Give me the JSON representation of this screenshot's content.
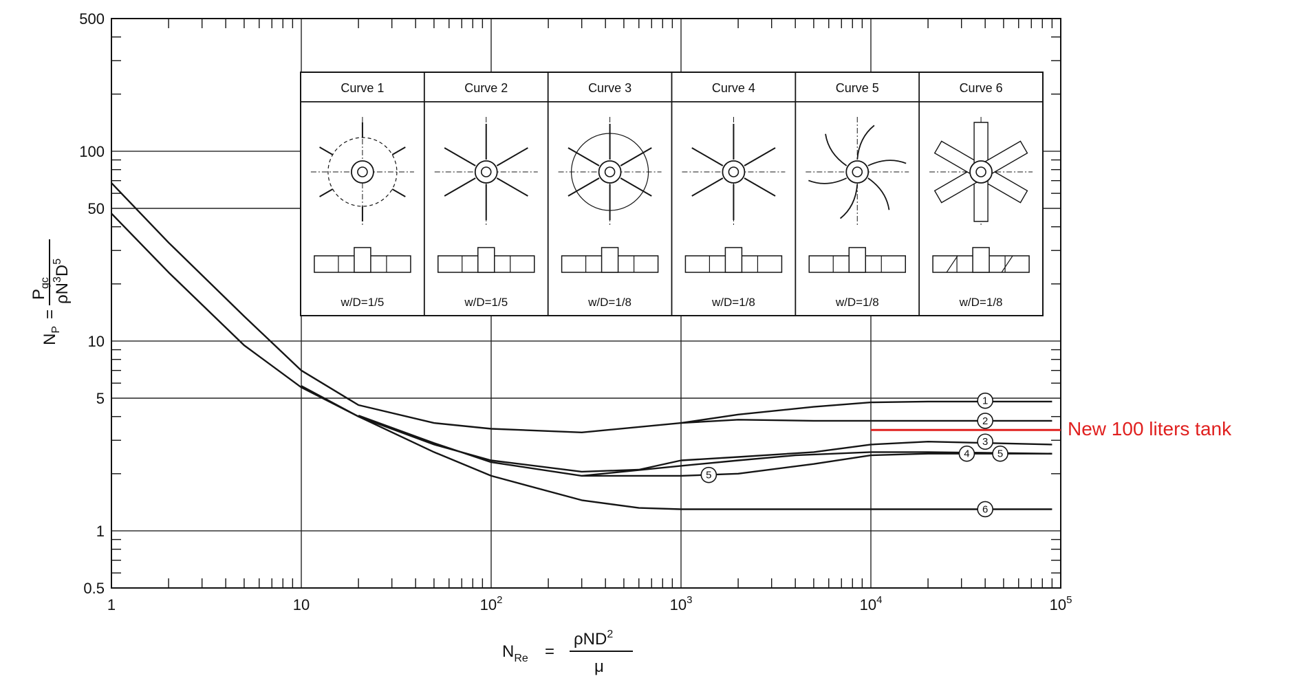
{
  "chart_data": {
    "type": "line",
    "title": "",
    "x_scale": "log",
    "y_scale": "log",
    "xlim": [
      1,
      100000
    ],
    "ylim": [
      0.5,
      500
    ],
    "grid": true,
    "xlabel": {
      "lhs": "N",
      "lhs_sub": "Re",
      "eq": "=",
      "num": "ρND",
      "num_sup": "2",
      "den": "μ"
    },
    "ylabel": {
      "lhs": "N",
      "lhs_sub": "P",
      "eq": "=",
      "num": "P",
      "num_sub": "gc",
      "den": "ρN",
      "den_sup1": "3",
      "den_mid": "D",
      "den_sup2": "5"
    },
    "x_ticks": [
      {
        "value": 1,
        "base": "1",
        "exp": ""
      },
      {
        "value": 10,
        "base": "10",
        "exp": ""
      },
      {
        "value": 100,
        "base": "10",
        "exp": "2"
      },
      {
        "value": 1000,
        "base": "10",
        "exp": "3"
      },
      {
        "value": 10000,
        "base": "10",
        "exp": "4"
      },
      {
        "value": 100000,
        "base": "10",
        "exp": "5"
      }
    ],
    "y_ticks": [
      {
        "value": 500,
        "label": "500"
      },
      {
        "value": 100,
        "label": "100"
      },
      {
        "value": 50,
        "label": "50"
      },
      {
        "value": 10,
        "label": "10"
      },
      {
        "value": 5,
        "label": "5"
      },
      {
        "value": 1,
        "label": "1"
      },
      {
        "value": 0.5,
        "label": "0.5"
      }
    ],
    "series": [
      {
        "label": "1",
        "points": [
          [
            1,
            68
          ],
          [
            2,
            33
          ],
          [
            5,
            13.5
          ],
          [
            10,
            7
          ],
          [
            20,
            4.6
          ],
          [
            50,
            3.7
          ],
          [
            100,
            3.45
          ],
          [
            300,
            3.3
          ],
          [
            1000,
            3.7
          ],
          [
            2000,
            4.1
          ],
          [
            5000,
            4.5
          ],
          [
            10000,
            4.75
          ],
          [
            20000,
            4.8
          ],
          [
            90000,
            4.8
          ]
        ],
        "markers": [
          [
            40000,
            4.85
          ]
        ]
      },
      {
        "label": "2",
        "points": [
          [
            1000,
            3.7
          ],
          [
            2000,
            3.85
          ],
          [
            5000,
            3.8
          ],
          [
            10000,
            3.8
          ],
          [
            90000,
            3.8
          ]
        ],
        "markers": [
          [
            40000,
            3.8
          ]
        ]
      },
      {
        "label": "3",
        "points": [
          [
            1,
            47
          ],
          [
            2,
            23
          ],
          [
            5,
            9.5
          ],
          [
            10,
            5.7
          ],
          [
            20,
            4.0
          ],
          [
            50,
            2.85
          ],
          [
            100,
            2.35
          ],
          [
            300,
            2.05
          ],
          [
            600,
            2.1
          ],
          [
            1000,
            2.35
          ],
          [
            2000,
            2.45
          ],
          [
            5000,
            2.6
          ],
          [
            10000,
            2.85
          ],
          [
            20000,
            2.95
          ],
          [
            90000,
            2.85
          ]
        ],
        "markers": [
          [
            40000,
            2.95
          ]
        ]
      },
      {
        "label": "4",
        "points": [
          [
            20,
            4.05
          ],
          [
            50,
            2.9
          ],
          [
            100,
            2.3
          ],
          [
            300,
            1.95
          ],
          [
            1000,
            2.2
          ],
          [
            2000,
            2.35
          ],
          [
            4000,
            2.5
          ],
          [
            10000,
            2.6
          ],
          [
            20000,
            2.6
          ],
          [
            90000,
            2.55
          ]
        ],
        "markers": [
          [
            32000,
            2.55
          ]
        ]
      },
      {
        "label": "5",
        "points": [
          [
            300,
            1.95
          ],
          [
            600,
            1.95
          ],
          [
            1000,
            1.95
          ],
          [
            2000,
            2.0
          ],
          [
            5000,
            2.25
          ],
          [
            10000,
            2.5
          ],
          [
            20000,
            2.55
          ],
          [
            90000,
            2.55
          ]
        ],
        "markers": [
          [
            1400,
            1.97
          ],
          [
            48000,
            2.55
          ]
        ]
      },
      {
        "label": "6",
        "points": [
          [
            10,
            5.8
          ],
          [
            20,
            4.0
          ],
          [
            50,
            2.6
          ],
          [
            100,
            1.95
          ],
          [
            300,
            1.45
          ],
          [
            600,
            1.32
          ],
          [
            1000,
            1.3
          ],
          [
            5000,
            1.3
          ],
          [
            10000,
            1.3
          ],
          [
            90000,
            1.3
          ]
        ],
        "markers": [
          [
            40000,
            1.3
          ]
        ]
      }
    ],
    "annotation": {
      "text": "New 100 liters tank",
      "x_start": 10000,
      "x_end": 100000,
      "y": 3.4,
      "color": "#e0201f"
    },
    "impeller_panels": [
      {
        "title": "Curve 1",
        "wd": "w/D=1/5"
      },
      {
        "title": "Curve 2",
        "wd": "w/D=1/5"
      },
      {
        "title": "Curve 3",
        "wd": "w/D=1/8"
      },
      {
        "title": "Curve 4",
        "wd": "w/D=1/8"
      },
      {
        "title": "Curve 5",
        "wd": "w/D=1/8"
      },
      {
        "title": "Curve 6",
        "wd": "w/D=1/8"
      }
    ]
  }
}
